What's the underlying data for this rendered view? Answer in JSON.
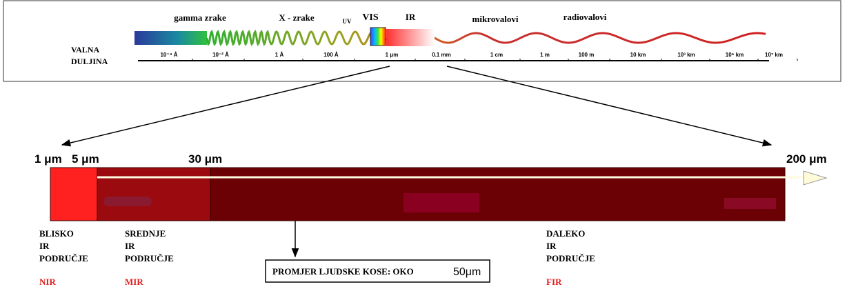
{
  "spectrum": {
    "bands": [
      "gamma zrake",
      "X - zrake",
      "UV",
      "VIS",
      "IR",
      "mikrovalovi",
      "radiovalovi"
    ],
    "axis_label": [
      "VALNA",
      "DULJINA"
    ],
    "scale": [
      "10⁻⁴ Å",
      "10⁻² Å",
      "1 Å",
      "100 Å",
      "1 μm",
      "0.1 mm",
      "1 cm",
      "1 m",
      "100 m",
      "10 km",
      "10³ km",
      "10⁵ km",
      "10⁷ km"
    ]
  },
  "infrared": {
    "ticks": [
      "1 μm",
      "5 μm",
      "30 μm",
      "200 μm"
    ],
    "regions": [
      {
        "lines": [
          "BLISKO",
          "IR",
          "PODRUČJE"
        ],
        "abbr": "NIR"
      },
      {
        "lines": [
          "SREDNJE",
          "IR",
          "PODRUČJE"
        ],
        "abbr": "MIR"
      },
      {
        "lines": [
          "DALEKO",
          "IR",
          "PODRUČJE"
        ],
        "abbr": "FIR"
      }
    ],
    "note": {
      "text": "PROMJER LJUDSKE KOSE: OKO",
      "value": "50μm"
    }
  }
}
